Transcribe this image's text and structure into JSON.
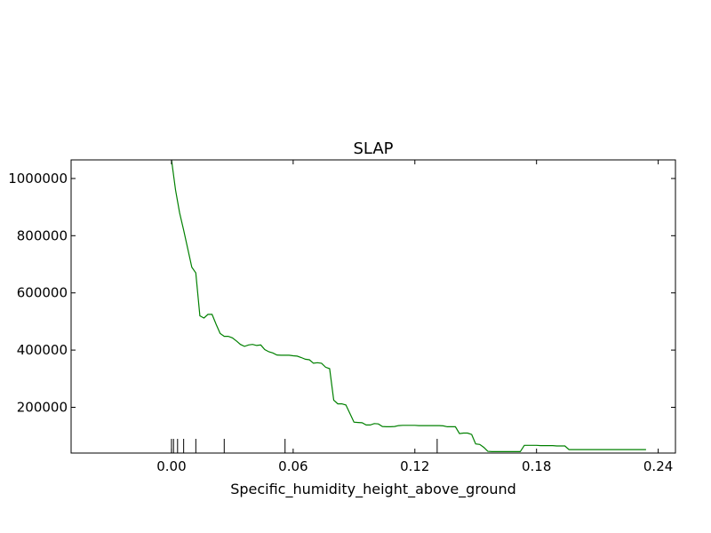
{
  "chart_data": {
    "type": "line",
    "title": "SLAP",
    "xlabel": "Specific_humidity_height_above_ground",
    "ylabel": "",
    "xlim": [
      -0.0495,
      0.2485
    ],
    "ylim": [
      40000,
      1065000
    ],
    "xticks": [
      0.0,
      0.06,
      0.12,
      0.18,
      0.24
    ],
    "xtick_labels": [
      "0.00",
      "0.06",
      "0.12",
      "0.18",
      "0.24"
    ],
    "yticks": [
      200000,
      400000,
      600000,
      800000,
      1000000
    ],
    "ytick_labels": [
      "200000",
      "400000",
      "600000",
      "800000",
      "1000000"
    ],
    "grid": false,
    "rug": [
      0.0,
      0.001,
      0.003,
      0.006,
      0.012,
      0.026,
      0.056,
      0.131
    ],
    "series": [
      {
        "color": "#008000",
        "x": [
          0.0,
          0.002,
          0.004,
          0.006,
          0.008,
          0.01,
          0.012,
          0.014,
          0.016,
          0.018,
          0.02,
          0.022,
          0.024,
          0.026,
          0.028,
          0.03,
          0.032,
          0.034,
          0.036,
          0.038,
          0.04,
          0.042,
          0.044,
          0.046,
          0.048,
          0.05,
          0.052,
          0.054,
          0.056,
          0.058,
          0.06,
          0.062,
          0.064,
          0.066,
          0.068,
          0.07,
          0.072,
          0.074,
          0.076,
          0.078,
          0.08,
          0.082,
          0.084,
          0.086,
          0.088,
          0.09,
          0.092,
          0.094,
          0.096,
          0.098,
          0.1,
          0.102,
          0.104,
          0.106,
          0.108,
          0.11,
          0.112,
          0.114,
          0.116,
          0.118,
          0.12,
          0.122,
          0.124,
          0.126,
          0.128,
          0.13,
          0.132,
          0.134,
          0.136,
          0.138,
          0.14,
          0.142,
          0.144,
          0.146,
          0.148,
          0.15,
          0.152,
          0.154,
          0.156,
          0.158,
          0.16,
          0.162,
          0.164,
          0.166,
          0.168,
          0.17,
          0.172,
          0.174,
          0.176,
          0.178,
          0.18,
          0.182,
          0.184,
          0.186,
          0.188,
          0.19,
          0.192,
          0.194,
          0.196,
          0.198,
          0.2,
          0.202,
          0.204,
          0.206,
          0.208,
          0.21,
          0.212,
          0.214,
          0.216,
          0.218,
          0.22,
          0.222,
          0.224,
          0.226,
          0.228,
          0.23,
          0.232,
          0.234
        ],
        "y": [
          1065000,
          960000,
          880000,
          820000,
          755000,
          690000,
          670000,
          520000,
          512000,
          525000,
          525000,
          490000,
          458000,
          448000,
          448000,
          443000,
          432000,
          420000,
          413000,
          418000,
          420000,
          416000,
          418000,
          402000,
          394000,
          390000,
          383000,
          382000,
          382000,
          382000,
          380000,
          379000,
          374000,
          368000,
          366000,
          354000,
          356000,
          354000,
          340000,
          335000,
          225000,
          212000,
          212000,
          208000,
          178000,
          148000,
          147000,
          146000,
          138000,
          138000,
          143000,
          142000,
          133000,
          132000,
          132000,
          133000,
          136000,
          137000,
          137000,
          137000,
          137000,
          136000,
          136000,
          136000,
          136000,
          136000,
          136000,
          135000,
          132000,
          132000,
          132000,
          108000,
          110000,
          110000,
          105000,
          72000,
          70000,
          60000,
          46000,
          45000,
          45000,
          45000,
          45000,
          45000,
          45000,
          45000,
          45000,
          67000,
          67000,
          67000,
          67000,
          66000,
          66000,
          66000,
          66000,
          65000,
          65000,
          65000,
          52000,
          52000,
          52000,
          52000,
          52000,
          52000,
          52000,
          52000,
          52000,
          52000,
          52000,
          52000,
          52000,
          52000,
          52000,
          52000,
          52000,
          52000,
          52000,
          52000
        ]
      }
    ]
  }
}
